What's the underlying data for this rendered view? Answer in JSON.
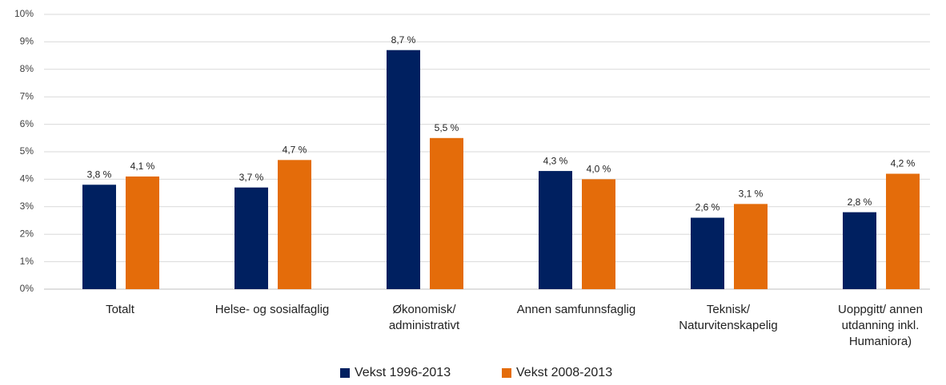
{
  "chart_data": {
    "type": "bar",
    "categories": [
      "Totalt",
      "Helse- og sosialfaglig",
      "Økonomisk/ administrativt",
      "Annen samfunnsfaglig",
      "Teknisk/ Naturvitenskapelig",
      "Uoppgitt/ annen utdanning inkl. Humaniora)"
    ],
    "series": [
      {
        "name": "Vekst 1996-2013",
        "color": "#002060",
        "values": [
          3.8,
          3.7,
          8.7,
          4.3,
          2.6,
          2.8
        ],
        "value_labels": [
          "3,8 %",
          "3,7 %",
          "8,7 %",
          "4,3 %",
          "2,6 %",
          "2,8 %"
        ]
      },
      {
        "name": "Vekst 2008-2013",
        "color": "#e46c0a",
        "values": [
          4.1,
          4.7,
          5.5,
          4.0,
          3.1,
          4.2
        ],
        "value_labels": [
          "4,1 %",
          "4,7 %",
          "5,5 %",
          "4,0 %",
          "3,1 %",
          "4,2 %"
        ]
      }
    ],
    "ylim": [
      0,
      10
    ],
    "yticks": [
      {
        "value": 0,
        "label": "0%"
      },
      {
        "value": 1,
        "label": "1%"
      },
      {
        "value": 2,
        "label": "2%"
      },
      {
        "value": 3,
        "label": "3%"
      },
      {
        "value": 4,
        "label": "4%"
      },
      {
        "value": 5,
        "label": "5%"
      },
      {
        "value": 6,
        "label": "6%"
      },
      {
        "value": 7,
        "label": "7%"
      },
      {
        "value": 8,
        "label": "8%"
      },
      {
        "value": 9,
        "label": "9%"
      },
      {
        "value": 10,
        "label": "10%"
      }
    ],
    "grid": true,
    "legend": "bottom"
  }
}
